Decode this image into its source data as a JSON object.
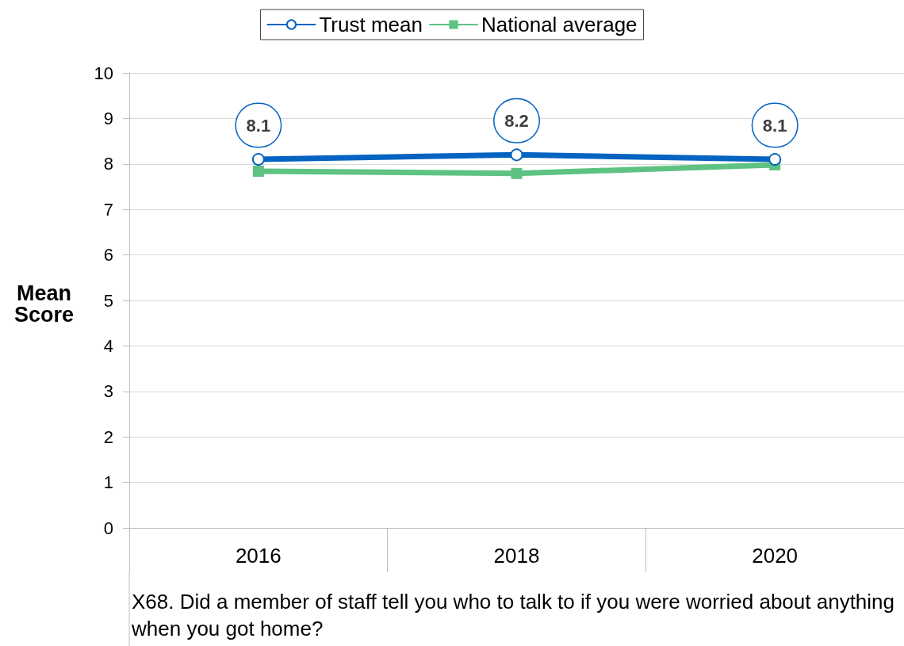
{
  "chart_data": {
    "type": "line",
    "xlabel": "X68. Did a member of staff tell you who to talk to if you were worried about anything when you got home?",
    "ylabel": "Mean\nScore",
    "categories": [
      "2016",
      "2018",
      "2020"
    ],
    "series": [
      {
        "name": "Trust mean",
        "color": "#0563c1",
        "values": [
          8.1,
          8.2,
          8.1
        ],
        "marker": "circle",
        "value_labels": [
          "8.1",
          "8.2",
          "8.1"
        ]
      },
      {
        "name": "National average",
        "color": "#5ec282",
        "values": [
          7.84,
          7.79,
          7.98
        ],
        "marker": "square"
      }
    ],
    "ylim": [
      0,
      10
    ],
    "yticks": [
      0,
      1,
      2,
      3,
      4,
      5,
      6,
      7,
      8,
      9,
      10
    ],
    "grid": "y",
    "legend": "top",
    "line_style": "solid"
  }
}
